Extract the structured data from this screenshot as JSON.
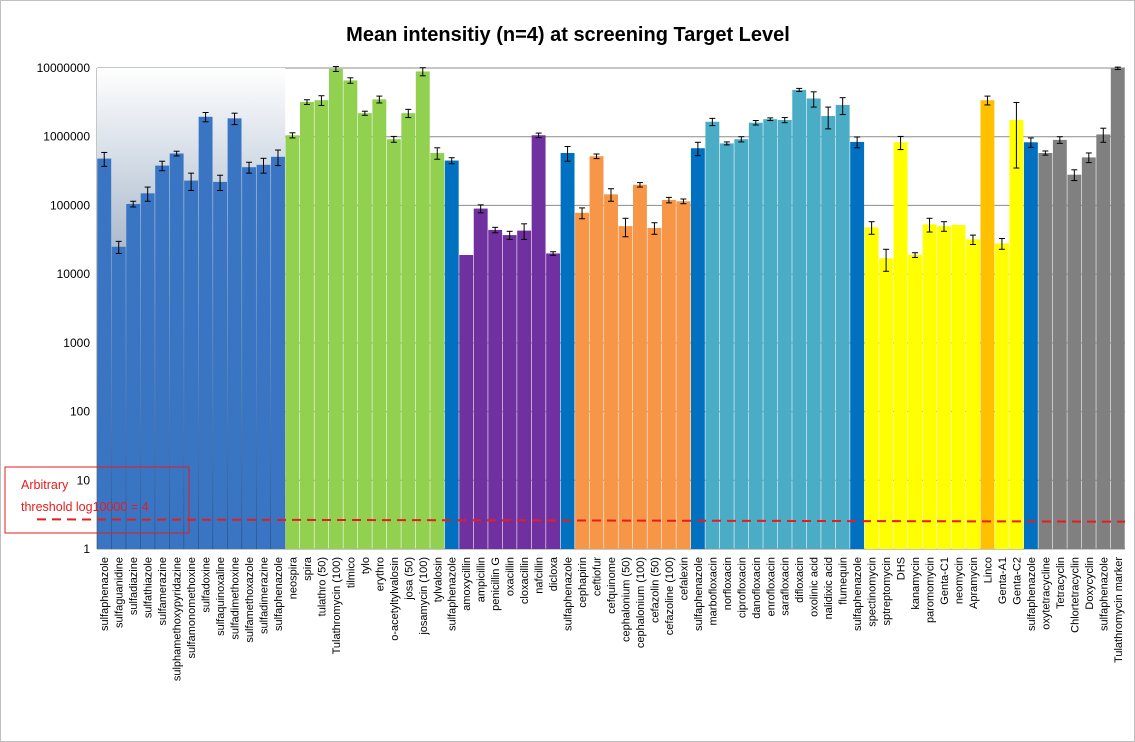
{
  "chart_data": {
    "type": "bar",
    "title": "Mean intensitiy  (n=4) at screening Target Level",
    "xlabel": "",
    "ylabel": "",
    "yscale": "log",
    "ylim": [
      1,
      10000000
    ],
    "yticks": [
      1,
      10,
      100,
      1000,
      10000,
      100000,
      1000000,
      10000000
    ],
    "ytick_labels": [
      "1",
      "10",
      "100",
      "1000",
      "10000",
      "100000",
      "1000000",
      "10000000"
    ],
    "grid": "horizontal",
    "legend": "none",
    "annotation": {
      "text_lines": [
        "Arbitrary",
        "threshold log10000 = 4"
      ],
      "line_value_left": 2.7,
      "line_value_right": 2.5,
      "color": "#e81c1c"
    },
    "categories": [
      "sulfaphenazole",
      "sulfaguanidine",
      "sulfadiazine",
      "sulfathiazole",
      "sulfamerazine",
      "sulphamethoxypyridazine",
      "sulfamonomethoxine",
      "sulfadoxine",
      "sulfaquinoxaline",
      "sulfadimethoxine",
      "sulfamethoxazole",
      "sulfadimerazine",
      "sulfaphenazole",
      "neospira",
      "spira",
      "tulathro (50)",
      "Tulathromycin (100)",
      "tilmico",
      "tylo",
      "erythro",
      "o-acetyltylvalosin",
      "josa (50)",
      "josamycin (100)",
      "tylvalosin",
      "sulfaphenazole",
      "amoxycillin",
      "ampicillin",
      "penicillin G",
      "oxacillin",
      "cloxacillin",
      "nafcillin",
      "dicloxa",
      "sulfaphenazole",
      "cephapirin",
      "ceftiofur",
      "cefquinome",
      "cephalonium (50)",
      "cephalonium (100)",
      "cefazolin (50)",
      "cefazoline (100)",
      "cefalexin",
      "sulfaphenazole",
      "marbofloxacin",
      "norfloxacin",
      "ciprofloxacin",
      "danofloxacin",
      "enrofloxacin",
      "sarafloxacin",
      "difloxacin",
      "oxolinic acid",
      "nalidixic acid",
      "flumequin",
      "sulfaphenazole",
      "spectinomycin",
      "sptreptomycin",
      "DHS",
      "kanamycin",
      "paromomycin",
      "Genta-C1",
      "neomycin",
      "Apramycin",
      "Linco",
      "Genta-A1",
      "Genta-C2",
      "sulfaphenazole",
      "oxytetracycline",
      "Tetracyclin",
      "Chlortetracyclin",
      "Doxycyclin",
      "sulfaphenazole",
      "Tulathromycin marker"
    ],
    "values": [
      480000,
      25000,
      105000,
      150000,
      380000,
      570000,
      230000,
      1950000,
      220000,
      1850000,
      360000,
      390000,
      510000,
      1050000,
      3200000,
      3400000,
      9700000,
      6600000,
      2200000,
      3500000,
      920000,
      2200000,
      8900000,
      580000,
      450000,
      19000,
      90000,
      44000,
      37000,
      43000,
      1050000,
      20000,
      580000,
      78000,
      520000,
      145000,
      50000,
      200000,
      47000,
      120000,
      115000,
      680000,
      1650000,
      800000,
      920000,
      1600000,
      1800000,
      1750000,
      4800000,
      3600000,
      2000000,
      2900000,
      840000,
      48000,
      17000,
      830000,
      19000,
      53000,
      50000,
      52000,
      32000,
      3400000,
      28000,
      1750000,
      830000,
      580000,
      900000,
      280000,
      500000,
      1080000,
      9900000
    ],
    "errors": [
      110000,
      5000,
      10000,
      35000,
      60000,
      45000,
      65000,
      300000,
      55000,
      350000,
      65000,
      95000,
      130000,
      90000,
      250000,
      550000,
      800000,
      600000,
      150000,
      400000,
      90000,
      300000,
      1200000,
      110000,
      45000,
      0,
      12000,
      4000,
      5000,
      11000,
      80000,
      1200,
      140000,
      14000,
      40000,
      30000,
      15000,
      15000,
      9000,
      11000,
      9000,
      150000,
      200000,
      40000,
      80000,
      120000,
      80000,
      150000,
      250000,
      900000,
      700000,
      800000,
      150000,
      10000,
      6000,
      180000,
      1500,
      12000,
      8000,
      0,
      5000,
      500000,
      5000,
      1400000,
      130000,
      40000,
      100000,
      50000,
      80000,
      250000,
      400000
    ],
    "colors": [
      "#3a75c4",
      "#3a75c4",
      "#3a75c4",
      "#3a75c4",
      "#3a75c4",
      "#3a75c4",
      "#3a75c4",
      "#3a75c4",
      "#3a75c4",
      "#3a75c4",
      "#3a75c4",
      "#3a75c4",
      "#3a75c4",
      "#92d050",
      "#92d050",
      "#92d050",
      "#92d050",
      "#92d050",
      "#92d050",
      "#92d050",
      "#92d050",
      "#92d050",
      "#92d050",
      "#92d050",
      "#0070c0",
      "#7030a0",
      "#7030a0",
      "#7030a0",
      "#7030a0",
      "#7030a0",
      "#7030a0",
      "#7030a0",
      "#0070c0",
      "#f79646",
      "#f79646",
      "#f79646",
      "#f79646",
      "#f79646",
      "#f79646",
      "#f79646",
      "#f79646",
      "#0070c0",
      "#4bacc6",
      "#4bacc6",
      "#4bacc6",
      "#4bacc6",
      "#4bacc6",
      "#4bacc6",
      "#4bacc6",
      "#4bacc6",
      "#4bacc6",
      "#4bacc6",
      "#0070c0",
      "#ffff00",
      "#ffff00",
      "#ffff00",
      "#ffff00",
      "#ffff00",
      "#ffff00",
      "#ffff00",
      "#ffff00",
      "#ffc000",
      "#ffff00",
      "#ffff00",
      "#0070c0",
      "#808080",
      "#808080",
      "#808080",
      "#808080",
      "#808080",
      "#808080"
    ],
    "background_gradient": {
      "start_color": "#ffffff",
      "end_color": "#1f497d",
      "from_bar": 0,
      "to_bar": 12
    }
  }
}
